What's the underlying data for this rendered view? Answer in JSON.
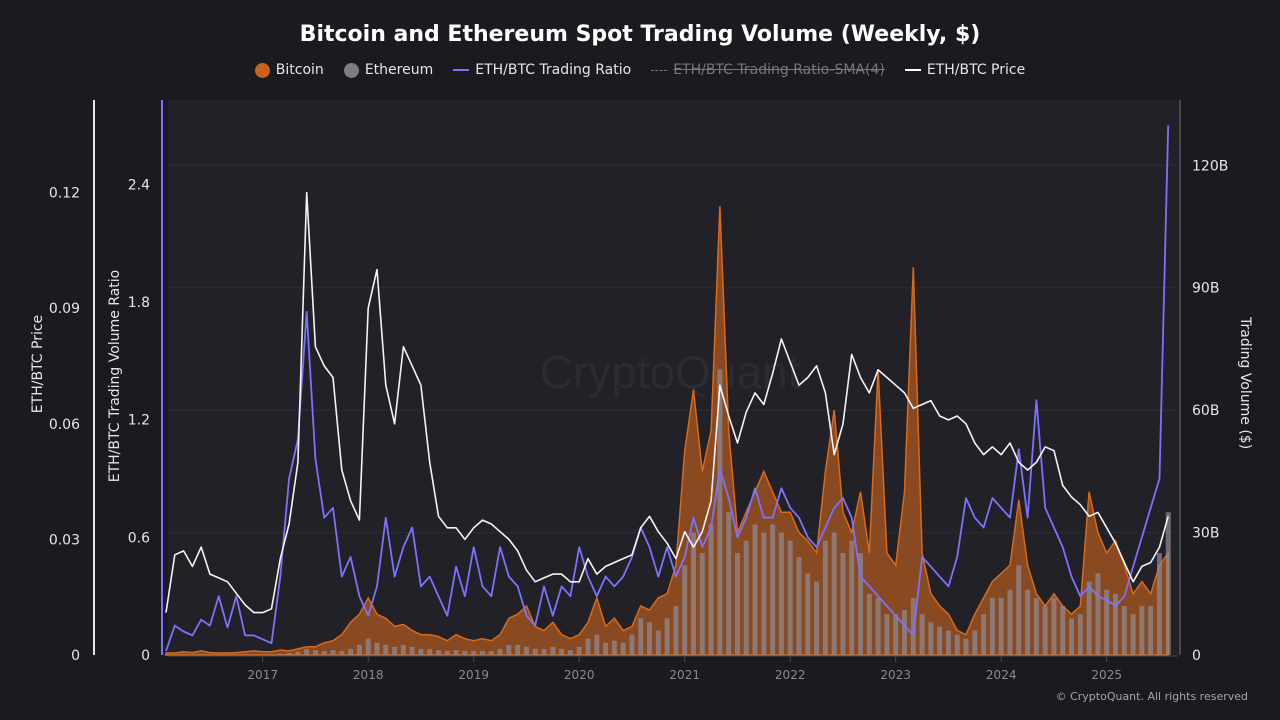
{
  "chart_data": {
    "type": "area+bar+line",
    "title": "Bitcoin and Ethereum Spot Trading Volume (Weekly, $)",
    "legend": {
      "placement": "top",
      "items": [
        {
          "label": "Bitcoin",
          "color": "#c8631d",
          "marker": "circle",
          "active": true
        },
        {
          "label": "Ethereum",
          "color": "#7d7c86",
          "marker": "circle",
          "active": true
        },
        {
          "label": "ETH/BTC Trading Ratio",
          "color": "#7b72ff",
          "marker": "line",
          "active": true
        },
        {
          "label": "ETH/BTC Trading Ratio-SMA(4)",
          "color": "#77767e",
          "marker": "dashed-line",
          "active": false
        },
        {
          "label": "ETH/BTC Price",
          "color": "#ffffff",
          "marker": "line",
          "active": true
        }
      ]
    },
    "axes": {
      "price": {
        "label": "ETH/BTC Price",
        "ticks": [
          "0",
          "0.03",
          "0.06",
          "0.09",
          "0.12"
        ],
        "range": [
          0,
          0.144
        ]
      },
      "ratio": {
        "label": "ETH/BTC Trading Volume Ratio",
        "ticks": [
          "0",
          "0.6",
          "1.2",
          "1.8",
          "2.4"
        ],
        "range": [
          0,
          2.83
        ]
      },
      "volume": {
        "label": "Trading Volume ($)",
        "ticks": [
          "0",
          "30B",
          "60B",
          "90B",
          "120B"
        ],
        "range": [
          0,
          136
        ]
      },
      "x": {
        "ticks": [
          "2017",
          "2018",
          "2019",
          "2020",
          "2021",
          "2022",
          "2023",
          "2024",
          "2025"
        ]
      }
    },
    "grid": true,
    "watermark": "CryptoQuant",
    "x": [
      "2016-02",
      "2016-03",
      "2016-04",
      "2016-05",
      "2016-06",
      "2016-07",
      "2016-08",
      "2016-09",
      "2016-10",
      "2016-11",
      "2016-12",
      "2017-01",
      "2017-02",
      "2017-03",
      "2017-04",
      "2017-05",
      "2017-06",
      "2017-07",
      "2017-08",
      "2017-09",
      "2017-10",
      "2017-11",
      "2017-12",
      "2018-01",
      "2018-02",
      "2018-03",
      "2018-04",
      "2018-05",
      "2018-06",
      "2018-07",
      "2018-08",
      "2018-09",
      "2018-10",
      "2018-11",
      "2018-12",
      "2019-01",
      "2019-02",
      "2019-03",
      "2019-04",
      "2019-05",
      "2019-06",
      "2019-07",
      "2019-08",
      "2019-09",
      "2019-10",
      "2019-11",
      "2019-12",
      "2020-01",
      "2020-02",
      "2020-03",
      "2020-04",
      "2020-05",
      "2020-06",
      "2020-07",
      "2020-08",
      "2020-09",
      "2020-10",
      "2020-11",
      "2020-12",
      "2021-01",
      "2021-02",
      "2021-03",
      "2021-04",
      "2021-05",
      "2021-06",
      "2021-07",
      "2021-08",
      "2021-09",
      "2021-10",
      "2021-11",
      "2021-12",
      "2022-01",
      "2022-02",
      "2022-03",
      "2022-04",
      "2022-05",
      "2022-06",
      "2022-07",
      "2022-08",
      "2022-09",
      "2022-10",
      "2022-11",
      "2022-12",
      "2023-01",
      "2023-02",
      "2023-03",
      "2023-04",
      "2023-05",
      "2023-06",
      "2023-07",
      "2023-08",
      "2023-09",
      "2023-10",
      "2023-11",
      "2023-12",
      "2024-01",
      "2024-02",
      "2024-03",
      "2024-04",
      "2024-05",
      "2024-06",
      "2024-07",
      "2024-08",
      "2024-09",
      "2024-10",
      "2024-11",
      "2024-12",
      "2025-01",
      "2025-02",
      "2025-03",
      "2025-04",
      "2025-05",
      "2025-06",
      "2025-07",
      "2025-08"
    ],
    "series": [
      {
        "name": "Bitcoin",
        "axis": "volume",
        "unit": "B USD",
        "values": [
          0.5,
          0.5,
          0.8,
          0.6,
          1.0,
          0.6,
          0.5,
          0.5,
          0.6,
          0.8,
          1.0,
          0.8,
          0.8,
          1.2,
          1.0,
          1.5,
          2.0,
          2.0,
          3.0,
          3.5,
          5.0,
          8.0,
          10.0,
          14.0,
          10.0,
          9.0,
          7.0,
          7.5,
          6.0,
          5.0,
          5.0,
          4.5,
          3.5,
          5.0,
          4.0,
          3.5,
          4.0,
          3.5,
          5.0,
          9.0,
          10.0,
          12.0,
          7.0,
          6.0,
          8.0,
          5.0,
          4.0,
          5.0,
          8.0,
          14.0,
          7.0,
          9.0,
          6.0,
          7.0,
          12.0,
          11.0,
          14.0,
          15.0,
          22.0,
          50.0,
          65.0,
          45.0,
          55.0,
          110.0,
          55.0,
          30.0,
          35.0,
          40.0,
          45.0,
          40.0,
          35.0,
          35.0,
          30.0,
          28.0,
          25.0,
          45.0,
          60.0,
          35.0,
          30.0,
          40.0,
          25.0,
          70.0,
          25.0,
          22.0,
          40.0,
          95.0,
          25.0,
          15.0,
          12.0,
          10.0,
          6.0,
          5.0,
          10.0,
          14.0,
          18.0,
          20.0,
          22.0,
          38.0,
          22.0,
          15.0,
          12.0,
          15.0,
          12.0,
          10.0,
          12.0,
          40.0,
          30.0,
          25.0,
          28.0,
          22.0,
          15.0,
          18.0,
          15.0,
          22.0,
          25.0
        ]
      },
      {
        "name": "Ethereum",
        "axis": "volume",
        "unit": "B USD",
        "values": [
          0.1,
          0.1,
          0.2,
          0.1,
          0.2,
          0.1,
          0.1,
          0.1,
          0.1,
          0.1,
          0.1,
          0.1,
          0.1,
          0.3,
          0.5,
          0.8,
          1.5,
          1.2,
          1.0,
          1.2,
          1.0,
          1.5,
          2.5,
          4.0,
          3.0,
          2.5,
          2.0,
          2.5,
          2.0,
          1.5,
          1.5,
          1.2,
          1.0,
          1.2,
          1.0,
          1.0,
          1.0,
          1.0,
          1.5,
          2.5,
          2.5,
          2.0,
          1.5,
          1.5,
          2.0,
          1.5,
          1.2,
          2.0,
          4.0,
          5.0,
          3.0,
          3.5,
          3.0,
          5.0,
          9.0,
          8.0,
          6.0,
          9.0,
          12.0,
          22.0,
          30.0,
          25.0,
          32.0,
          70.0,
          35.0,
          25.0,
          28.0,
          32.0,
          30.0,
          32.0,
          30.0,
          28.0,
          24.0,
          20.0,
          18.0,
          28.0,
          30.0,
          25.0,
          28.0,
          25.0,
          15.0,
          14.0,
          10.0,
          10.0,
          11.0,
          14.0,
          10.0,
          8.0,
          7.0,
          6.0,
          5.0,
          4.0,
          6.0,
          10.0,
          14.0,
          14.0,
          16.0,
          22.0,
          16.0,
          14.0,
          12.0,
          14.0,
          12.0,
          9.0,
          10.0,
          18.0,
          20.0,
          16.0,
          15.0,
          12.0,
          10.0,
          12.0,
          12.0,
          25.0,
          35.0
        ]
      },
      {
        "name": "ETH/BTC Trading Ratio",
        "axis": "ratio",
        "values": [
          0.02,
          0.15,
          0.12,
          0.1,
          0.18,
          0.15,
          0.3,
          0.14,
          0.3,
          0.1,
          0.1,
          0.08,
          0.06,
          0.4,
          0.9,
          1.1,
          1.75,
          1.0,
          0.7,
          0.75,
          0.4,
          0.5,
          0.3,
          0.2,
          0.35,
          0.7,
          0.4,
          0.55,
          0.65,
          0.35,
          0.4,
          0.3,
          0.2,
          0.45,
          0.3,
          0.55,
          0.35,
          0.3,
          0.55,
          0.4,
          0.35,
          0.2,
          0.15,
          0.35,
          0.2,
          0.35,
          0.3,
          0.55,
          0.4,
          0.3,
          0.4,
          0.35,
          0.4,
          0.5,
          0.65,
          0.55,
          0.4,
          0.55,
          0.4,
          0.5,
          0.7,
          0.55,
          0.65,
          0.95,
          0.8,
          0.6,
          0.7,
          0.85,
          0.7,
          0.7,
          0.85,
          0.75,
          0.7,
          0.6,
          0.55,
          0.65,
          0.75,
          0.8,
          0.7,
          0.4,
          0.35,
          0.3,
          0.25,
          0.2,
          0.15,
          0.1,
          0.5,
          0.45,
          0.4,
          0.35,
          0.5,
          0.8,
          0.7,
          0.65,
          0.8,
          0.75,
          0.7,
          1.05,
          0.7,
          1.3,
          0.75,
          0.65,
          0.55,
          0.4,
          0.3,
          0.35,
          0.3,
          0.28,
          0.25,
          0.3,
          0.45,
          0.6,
          0.75,
          0.9,
          2.7
        ]
      },
      {
        "name": "ETH/BTC Price",
        "axis": "price",
        "values": [
          0.011,
          0.026,
          0.027,
          0.023,
          0.028,
          0.021,
          0.02,
          0.019,
          0.016,
          0.013,
          0.011,
          0.011,
          0.012,
          0.025,
          0.034,
          0.05,
          0.12,
          0.08,
          0.075,
          0.072,
          0.048,
          0.04,
          0.035,
          0.09,
          0.1,
          0.07,
          0.06,
          0.08,
          0.075,
          0.07,
          0.05,
          0.036,
          0.033,
          0.033,
          0.03,
          0.033,
          0.035,
          0.034,
          0.032,
          0.03,
          0.027,
          0.022,
          0.019,
          0.02,
          0.021,
          0.021,
          0.019,
          0.019,
          0.025,
          0.021,
          0.023,
          0.024,
          0.025,
          0.026,
          0.033,
          0.036,
          0.032,
          0.029,
          0.025,
          0.032,
          0.028,
          0.032,
          0.04,
          0.07,
          0.062,
          0.055,
          0.063,
          0.068,
          0.065,
          0.073,
          0.082,
          0.076,
          0.07,
          0.072,
          0.075,
          0.068,
          0.052,
          0.06,
          0.078,
          0.072,
          0.068,
          0.074,
          0.072,
          0.07,
          0.068,
          0.064,
          0.065,
          0.066,
          0.062,
          0.061,
          0.062,
          0.06,
          0.055,
          0.052,
          0.054,
          0.052,
          0.055,
          0.05,
          0.048,
          0.05,
          0.054,
          0.053,
          0.044,
          0.041,
          0.039,
          0.036,
          0.037,
          0.033,
          0.029,
          0.024,
          0.019,
          0.023,
          0.024,
          0.028,
          0.036
        ]
      }
    ]
  },
  "footer": {
    "copyright": "© CryptoQuant. All rights reserved"
  }
}
